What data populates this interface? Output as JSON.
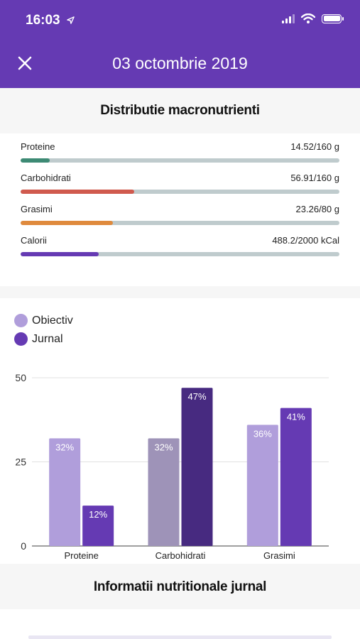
{
  "status_bar": {
    "time": "16:03",
    "location_icon": "location-arrow-icon",
    "signal_icon": "cellular-signal-icon",
    "wifi_icon": "wifi-icon",
    "battery_icon": "battery-icon"
  },
  "header": {
    "title": "03 octombrie 2019",
    "close_icon": "close-icon",
    "background": "#653ab3"
  },
  "macro_section": {
    "title": "Distributie macronutrienti",
    "items": [
      {
        "label": "Proteine",
        "value": "14.52/160 g",
        "progress": 0.091,
        "color": "#3d8a74"
      },
      {
        "label": "Carbohidrati",
        "value": "56.91/160 g",
        "progress": 0.356,
        "color": "#d05a4e"
      },
      {
        "label": "Grasimi",
        "value": "23.26/80 g",
        "progress": 0.29,
        "color": "#df8a3d"
      },
      {
        "label": "Calorii",
        "value": "488.2/2000 kCal",
        "progress": 0.244,
        "color": "#653ab3"
      }
    ]
  },
  "legend": [
    {
      "label": "Obiectiv",
      "color": "#b09edb"
    },
    {
      "label": "Jurnal",
      "color": "#653ab3"
    }
  ],
  "chart_data": {
    "type": "bar",
    "categories": [
      "Proteine",
      "Carbohidrati",
      "Grasimi"
    ],
    "series": [
      {
        "name": "Obiectiv",
        "values": [
          32,
          32,
          36
        ],
        "labels": [
          "32%",
          "32%",
          "36%"
        ],
        "colors": [
          "#b09edb",
          "#9e93b8",
          "#b09edb"
        ]
      },
      {
        "name": "Jurnal",
        "values": [
          12,
          47,
          41
        ],
        "labels": [
          "12%",
          "47%",
          "41%"
        ],
        "colors": [
          "#653ab3",
          "#472a80",
          "#653ab3"
        ]
      }
    ],
    "y_ticks": [
      "0",
      "25",
      "50"
    ],
    "ylim": [
      0,
      50
    ],
    "grid": true
  },
  "info_section": {
    "title": "Informatii nutritionale jurnal"
  }
}
